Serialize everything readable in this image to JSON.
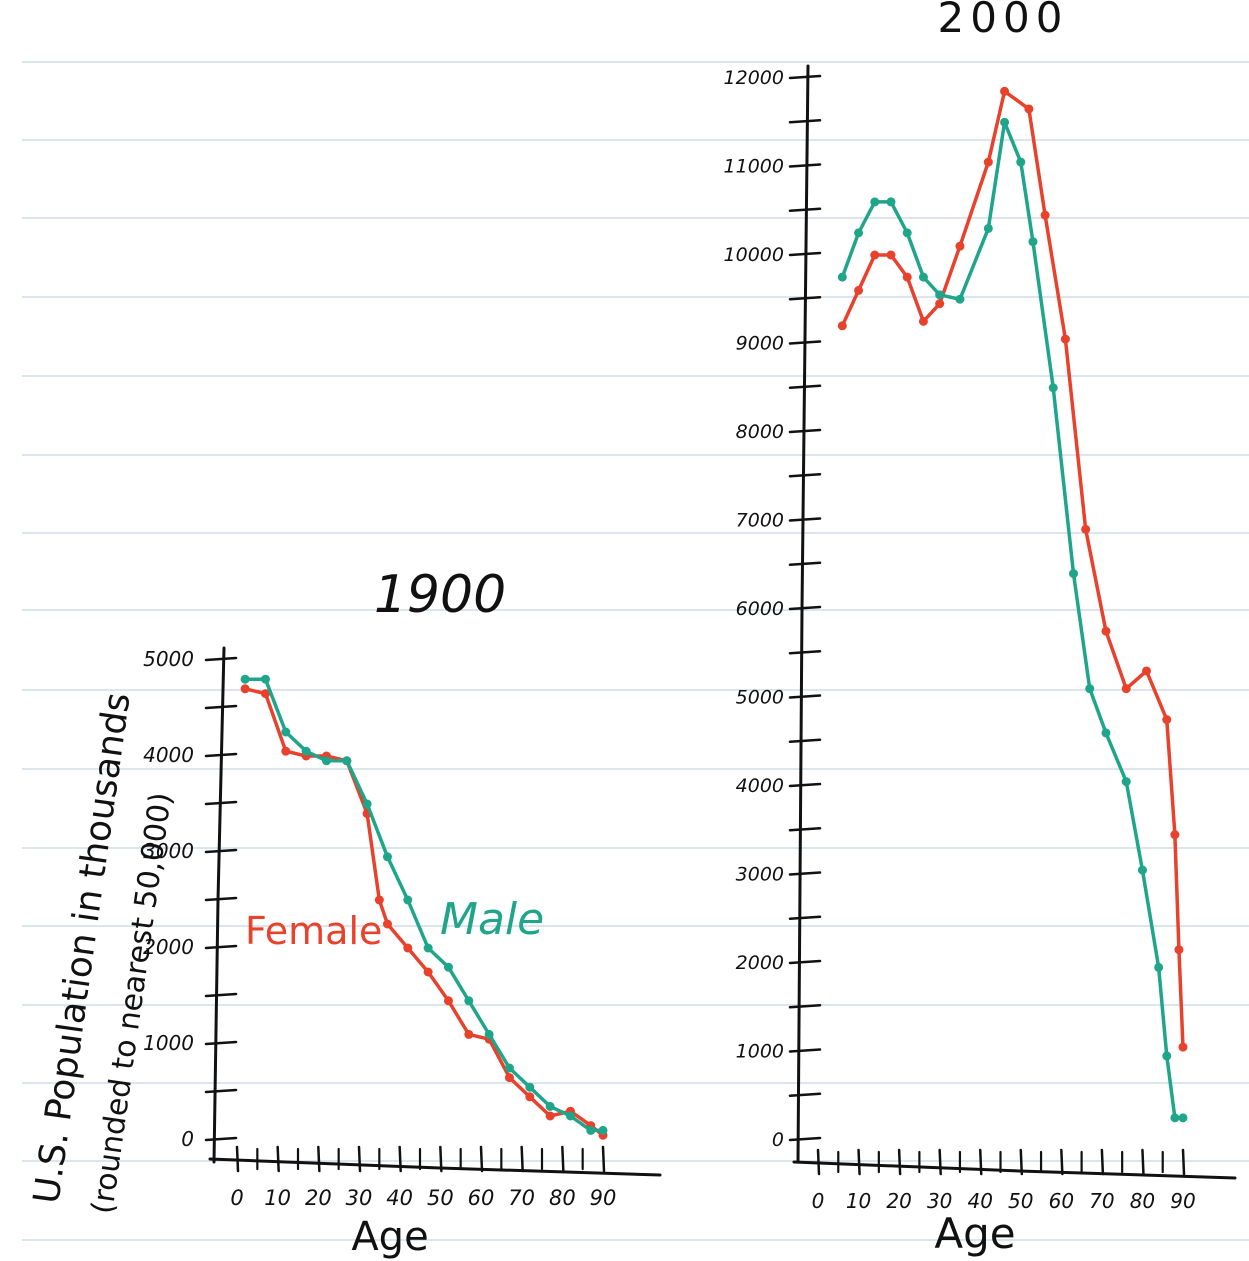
{
  "colors": {
    "female": "#e8412c",
    "male": "#1fa58a",
    "ruling": "#b9c8dc",
    "ink": "#111111"
  },
  "shared": {
    "ylabel_line1": "U.S. Population in thousands",
    "ylabel_line2": "(rounded to nearest 50,000)",
    "female_label": "Female",
    "male_label": "Male"
  },
  "chart_data": [
    {
      "type": "line",
      "title": "1900",
      "xlabel": "Age",
      "ylabel": "U.S. Population in thousands (rounded to nearest 50,000)",
      "x_ticks": [
        "0",
        "10",
        "20",
        "30",
        "40",
        "50",
        "60",
        "70",
        "80",
        "90"
      ],
      "y_ticks": [
        "0",
        "1000",
        "2000",
        "3000",
        "4000",
        "5000"
      ],
      "xlim": [
        0,
        90
      ],
      "ylim": [
        0,
        5000
      ],
      "series": [
        {
          "name": "Female",
          "x": [
            2,
            7,
            12,
            17,
            22,
            27,
            32,
            35,
            37,
            42,
            47,
            52,
            57,
            62,
            67,
            72,
            77,
            82,
            87,
            90
          ],
          "y": [
            4700,
            4650,
            4050,
            4000,
            4000,
            3950,
            3400,
            2500,
            2250,
            2000,
            1750,
            1450,
            1100,
            1050,
            650,
            450,
            250,
            300,
            150,
            50
          ]
        },
        {
          "name": "Male",
          "x": [
            2,
            7,
            12,
            17,
            22,
            27,
            32,
            37,
            42,
            47,
            52,
            57,
            62,
            67,
            72,
            77,
            82,
            87,
            90
          ],
          "y": [
            4800,
            4800,
            4250,
            4050,
            3950,
            3950,
            3500,
            2950,
            2500,
            2000,
            1800,
            1450,
            1100,
            750,
            550,
            350,
            250,
            100,
            100
          ]
        }
      ]
    },
    {
      "type": "line",
      "title": "2000",
      "xlabel": "Age",
      "ylabel": "",
      "x_ticks": [
        "0",
        "10",
        "20",
        "30",
        "40",
        "50",
        "60",
        "70",
        "80",
        "90"
      ],
      "y_ticks": [
        "0",
        "1000",
        "2000",
        "3000",
        "4000",
        "5000",
        "6000",
        "7000",
        "8000",
        "9000",
        "10000",
        "11000",
        "12000"
      ],
      "xlim": [
        0,
        90
      ],
      "ylim": [
        0,
        12000
      ],
      "series": [
        {
          "name": "Female",
          "x": [
            6,
            10,
            14,
            18,
            22,
            26,
            30,
            35,
            42,
            46,
            52,
            56,
            61,
            66,
            71,
            76,
            81,
            86,
            88,
            89,
            90
          ],
          "y": [
            9200,
            9600,
            10000,
            10000,
            9750,
            9250,
            9450,
            10100,
            11050,
            11850,
            11650,
            10450,
            9050,
            6900,
            5750,
            5100,
            5300,
            4750,
            3450,
            2150,
            1050
          ]
        },
        {
          "name": "Male",
          "x": [
            6,
            10,
            14,
            18,
            22,
            26,
            30,
            35,
            42,
            46,
            50,
            53,
            58,
            63,
            67,
            71,
            76,
            80,
            84,
            86,
            88,
            90
          ],
          "y": [
            9750,
            10250,
            10600,
            10600,
            10250,
            9750,
            9550,
            9500,
            10300,
            11500,
            11050,
            10150,
            8500,
            6400,
            5100,
            4600,
            4050,
            3050,
            1950,
            950,
            250,
            250
          ]
        }
      ]
    }
  ]
}
